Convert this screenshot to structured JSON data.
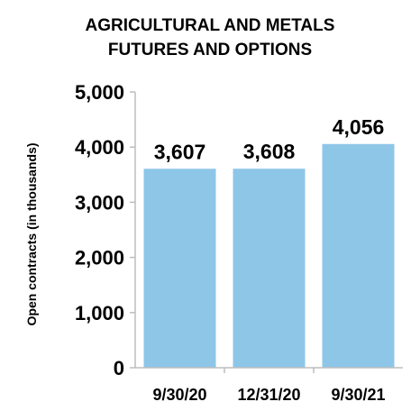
{
  "chart_data": {
    "type": "bar",
    "title_lines": [
      "AGRICULTURAL AND METALS",
      "FUTURES AND OPTIONS"
    ],
    "categories": [
      "9/30/20",
      "12/31/20",
      "9/30/21"
    ],
    "values": [
      3607,
      3608,
      4056
    ],
    "data_labels": [
      "3,607",
      "3,608",
      "4,056"
    ],
    "ylabel": "Open contracts (in thousands)",
    "xlabel": "",
    "ylim": [
      0,
      5000
    ],
    "yticks": [
      0,
      1000,
      2000,
      3000,
      4000,
      5000
    ],
    "ytick_labels": [
      "0",
      "1,000",
      "2,000",
      "3,000",
      "4,000",
      "5,000"
    ],
    "grid": false,
    "bar_color": "#8ec6e8",
    "axis_color": "#bdbdbd"
  }
}
